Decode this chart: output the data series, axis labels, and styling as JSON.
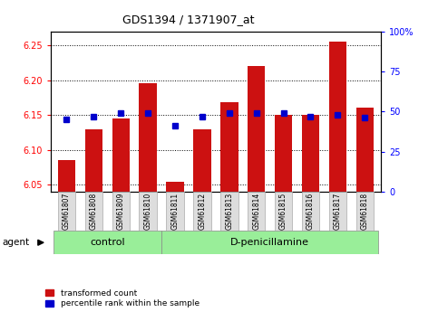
{
  "title": "GDS1394 / 1371907_at",
  "samples": [
    "GSM61807",
    "GSM61808",
    "GSM61809",
    "GSM61810",
    "GSM61811",
    "GSM61812",
    "GSM61813",
    "GSM61814",
    "GSM61815",
    "GSM61816",
    "GSM61817",
    "GSM61818"
  ],
  "red_values": [
    6.085,
    6.13,
    6.145,
    6.195,
    6.055,
    6.13,
    6.168,
    6.22,
    6.15,
    6.15,
    6.255,
    6.16
  ],
  "blue_values": [
    45,
    47,
    49,
    49,
    41,
    47,
    49,
    49,
    49,
    47,
    48,
    46
  ],
  "ylim_left": [
    6.04,
    6.27
  ],
  "ylim_right": [
    0,
    100
  ],
  "yticks_left": [
    6.05,
    6.1,
    6.15,
    6.2,
    6.25
  ],
  "yticks_right": [
    0,
    25,
    50,
    75,
    100
  ],
  "control_samples": 4,
  "control_label": "control",
  "treatment_label": "D-penicillamine",
  "agent_label": "agent",
  "bar_color": "#cc1111",
  "dot_color": "#0000cc",
  "bar_bottom": 6.04,
  "legend_red": "transformed count",
  "legend_blue": "percentile rank within the sample",
  "bar_width": 0.65,
  "control_bg": "#99ee99",
  "treatment_bg": "#99ee99",
  "sample_bg": "#dddddd",
  "title_fontsize": 9,
  "tick_fontsize": 7,
  "label_fontsize": 7,
  "group_fontsize": 8
}
